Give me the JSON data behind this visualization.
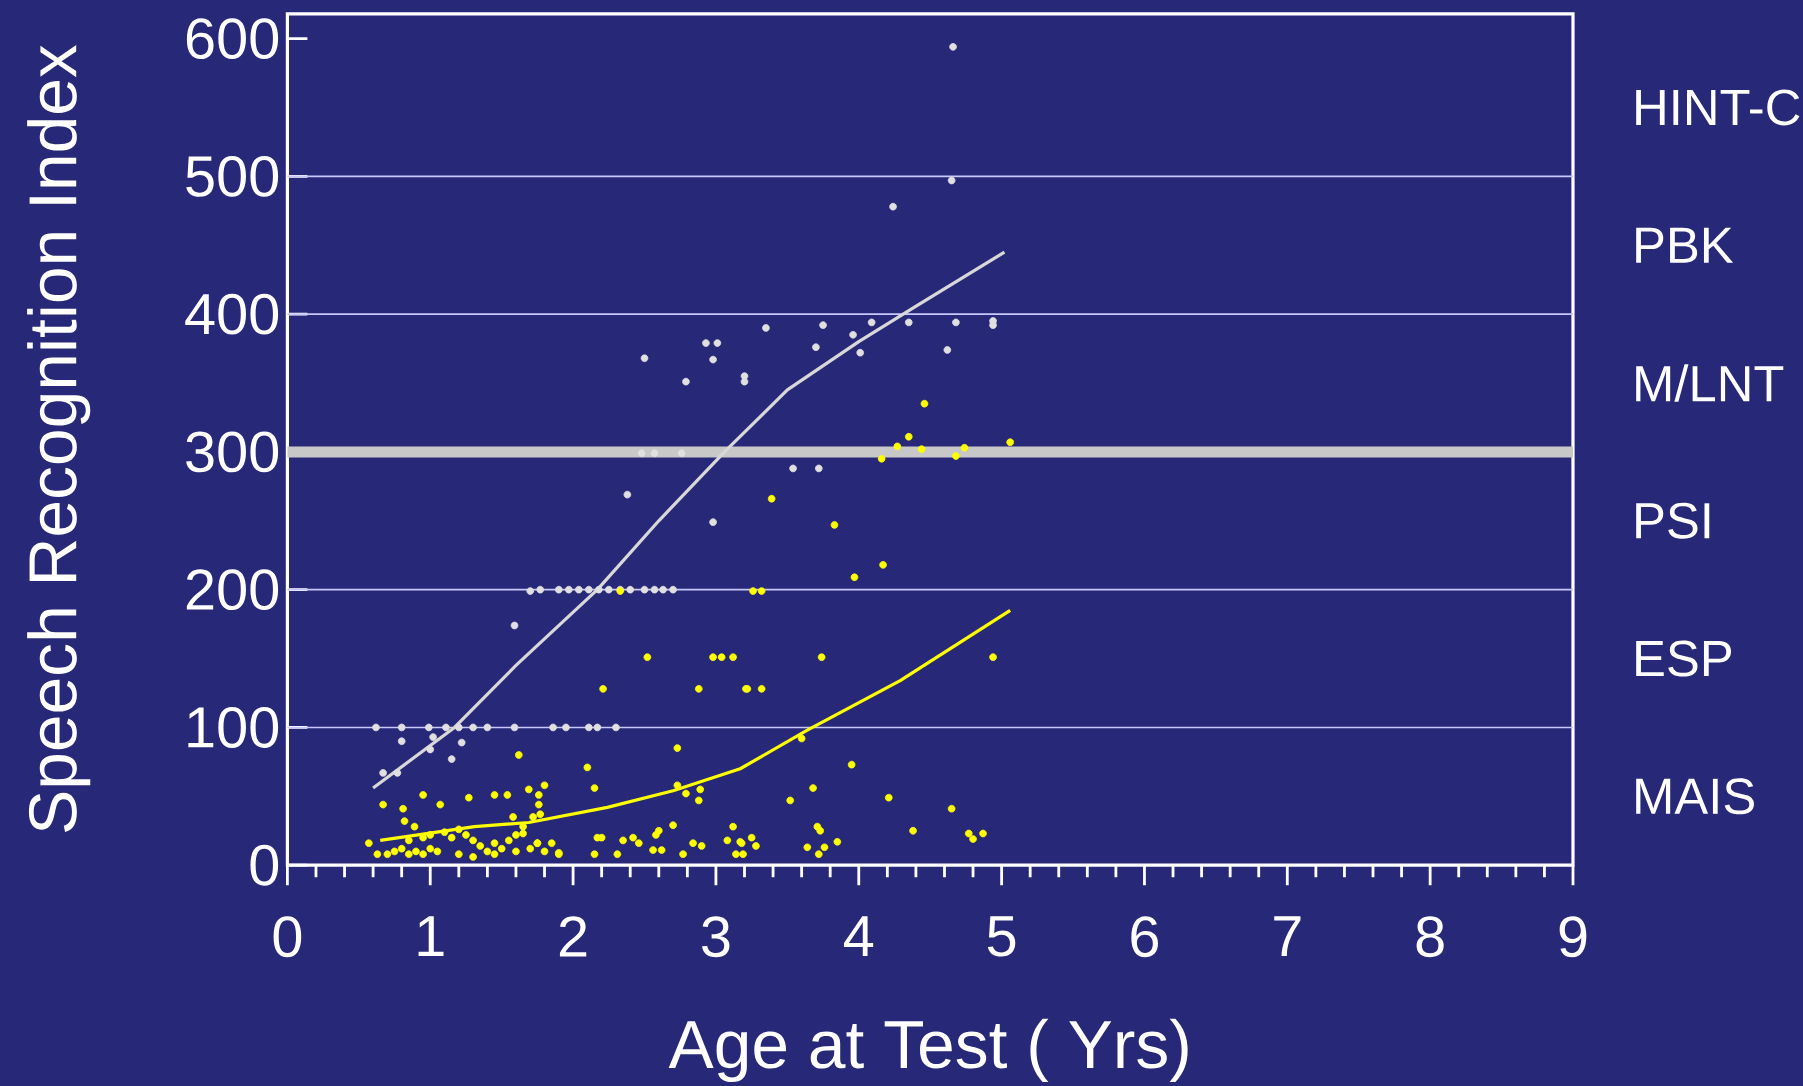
{
  "chart_data": {
    "type": "scatter",
    "xlabel": "Age at Test ( Yrs)",
    "ylabel": "Speech Recognition Index",
    "xlim": [
      0,
      9
    ],
    "ylim": [
      0,
      618
    ],
    "xticks": [
      0,
      1,
      2,
      3,
      4,
      5,
      6,
      7,
      8,
      9
    ],
    "yticks": [
      0,
      100,
      200,
      300,
      400,
      500,
      600
    ],
    "marker": "circle",
    "series": [
      {
        "color": "#e0e0e0",
        "x": [
          0.62,
          0.8,
          0.99,
          1.11,
          1.2,
          1.3,
          1.4,
          1.59,
          1.86,
          1.95,
          2.11,
          2.17,
          2.3,
          0.67,
          0.77,
          0.8,
          1.02,
          1.15,
          1.0,
          1.22,
          1.59,
          1.7,
          1.77,
          1.9,
          1.97,
          2.04,
          2.11,
          2.18,
          2.25,
          2.33,
          2.4,
          2.5,
          2.57,
          2.63,
          2.7,
          2.38,
          2.5,
          2.48,
          2.57,
          2.76,
          2.79,
          2.93,
          2.98,
          3.01,
          2.98,
          3.2,
          3.2,
          3.35,
          3.54,
          3.72,
          3.7,
          3.75,
          3.96,
          4.01,
          4.09,
          4.24,
          4.35,
          4.62,
          4.65,
          4.66,
          4.68,
          4.94,
          4.94
        ],
        "values": [
          100,
          100,
          100,
          100,
          100,
          100,
          100,
          100,
          100,
          100,
          100,
          100,
          100,
          67,
          67,
          90,
          93,
          77,
          84,
          89,
          174,
          199,
          200,
          200,
          200,
          200,
          200,
          200,
          200,
          200,
          200,
          200,
          200,
          200,
          200,
          269,
          368,
          299,
          299,
          299,
          351,
          379,
          367,
          379,
          249,
          355,
          351,
          390,
          288,
          288,
          376,
          392,
          385,
          372,
          394,
          478,
          394,
          374,
          497,
          594,
          394,
          395,
          392
        ]
      },
      {
        "type": "line",
        "marker": "none",
        "color": "#d8d8d8",
        "x": [
          0.6,
          1.17,
          1.6,
          2.17,
          2.6,
          3.06,
          3.5,
          4.0,
          4.39,
          5.02
        ],
        "values": [
          56,
          100,
          145,
          200,
          250,
          300,
          345,
          380,
          405,
          445
        ]
      },
      {
        "color": "#ffff00",
        "x": [
          2.21,
          2.88,
          3.21,
          1.62,
          2.73,
          2.1,
          2.15,
          0.67,
          0.81,
          0.95,
          1.07,
          1.27,
          1.45,
          1.54,
          1.69,
          1.76,
          1.8,
          1.76,
          1.77,
          0.82,
          0.89,
          1.58,
          1.72,
          2.73,
          2.79,
          2.89,
          2.88,
          2.7,
          2.6,
          3.12,
          0.57,
          0.63,
          0.7,
          0.75,
          0.8,
          0.85,
          0.9,
          0.95,
          1.0,
          1.05,
          0.85,
          0.95,
          1.0,
          1.1,
          1.15,
          1.2,
          1.25,
          1.3,
          1.35,
          1.4,
          1.45,
          1.5,
          1.55,
          1.6,
          1.7,
          1.75,
          1.8,
          1.9,
          1.2,
          1.3,
          1.45,
          1.6,
          1.85,
          1.65,
          2.17,
          2.2,
          2.35,
          2.42,
          2.46,
          2.56,
          2.62,
          2.15,
          2.31,
          2.77,
          2.84,
          2.9,
          3.08,
          3.14,
          3.18,
          2.58,
          1.9,
          1.75,
          1.65,
          3.22,
          3.32,
          3.6,
          3.95,
          3.68,
          3.52,
          4.21,
          4.65,
          4.38,
          3.71,
          3.73,
          4.77,
          4.8,
          4.87,
          3.85,
          3.64,
          3.76,
          3.72,
          3.25,
          3.28,
          3.19,
          3.17,
          4.46,
          4.35,
          4.27,
          4.44,
          4.16,
          4.74,
          4.68,
          5.06,
          3.39,
          3.83,
          4.17,
          3.97,
          3.26,
          3.32,
          3.74,
          4.94,
          2.33,
          2.52,
          2.98,
          3.04,
          3.12
        ],
        "values": [
          128,
          128,
          128,
          80,
          85,
          71,
          56,
          44,
          41,
          51,
          44,
          49,
          51,
          51,
          55,
          51,
          58,
          44,
          37,
          32,
          28,
          35,
          35,
          58,
          52,
          55,
          47,
          29,
          25,
          28,
          16,
          8,
          8,
          10,
          12,
          8,
          10,
          8,
          12,
          10,
          18,
          20,
          22,
          24,
          20,
          26,
          22,
          18,
          14,
          10,
          16,
          12,
          18,
          10,
          12,
          16,
          10,
          8,
          8,
          6,
          8,
          22,
          16,
          28,
          20,
          20,
          18,
          20,
          16,
          11,
          11,
          8,
          8,
          8,
          16,
          14,
          18,
          8,
          16,
          22,
          9,
          16,
          23,
          128,
          128,
          92,
          73,
          56,
          47,
          49,
          41,
          25,
          28,
          25,
          23,
          19,
          23,
          17,
          13,
          13,
          8,
          20,
          14,
          8,
          17,
          335,
          311,
          304,
          302,
          295,
          303,
          297,
          307,
          266,
          247,
          218,
          209,
          199,
          199,
          151,
          151,
          199,
          151,
          151,
          151,
          151
        ]
      },
      {
        "type": "line",
        "marker": "none",
        "color": "#ffff00",
        "x": [
          0.65,
          1.31,
          1.69,
          2.24,
          2.7,
          3.17,
          3.64,
          4.29,
          5.06
        ],
        "values": [
          18,
          28,
          31,
          42,
          54,
          70,
          98,
          134,
          185
        ]
      }
    ],
    "ref_lines": [
      {
        "axis": "y",
        "value": 100,
        "color": "#c8c8ff"
      },
      {
        "axis": "y",
        "value": 200,
        "color": "#c8c8ff"
      },
      {
        "axis": "y",
        "value": 400,
        "color": "#c8c8ff"
      },
      {
        "axis": "y",
        "value": 500,
        "color": "#c8c8ff"
      }
    ],
    "bands": [
      {
        "axis": "y",
        "from": 296,
        "to": 304,
        "color": "#c8c8c8"
      }
    ],
    "annotations": [
      "MAIS",
      "ESP",
      "PSI",
      "M/LNT",
      "PBK",
      "HINT-C"
    ]
  }
}
